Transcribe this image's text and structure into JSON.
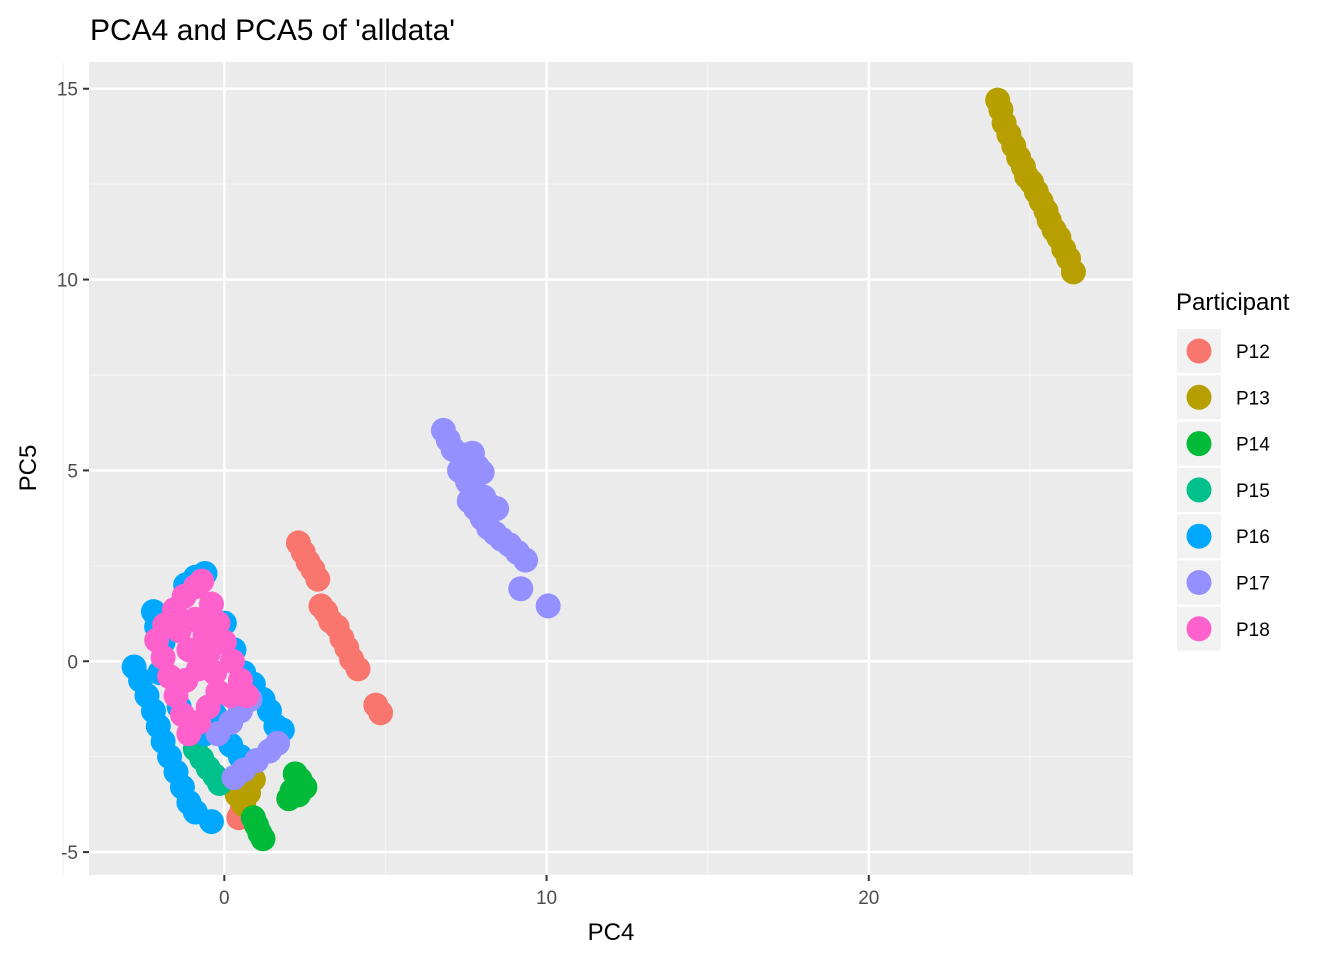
{
  "chart_data": {
    "type": "scatter",
    "title": "PCA4 and PCA5 of 'alldata'",
    "xlabel": "PC4",
    "ylabel": "PC5",
    "xlim": [
      -4.2,
      28.2
    ],
    "ylim": [
      -5.6,
      15.7
    ],
    "x_ticks": [
      {
        "value": 0,
        "label": "0"
      },
      {
        "value": 10,
        "label": "10"
      },
      {
        "value": 20,
        "label": "20"
      }
    ],
    "y_ticks": [
      {
        "value": -5,
        "label": "-5"
      },
      {
        "value": 0,
        "label": "0"
      },
      {
        "value": 5,
        "label": "5"
      },
      {
        "value": 10,
        "label": "10"
      },
      {
        "value": 15,
        "label": "15"
      }
    ],
    "x_minor": [
      -5,
      5,
      15,
      25
    ],
    "y_minor": [
      -2.5,
      2.5,
      7.5,
      12.5
    ],
    "grid": true,
    "legend": {
      "title": "Participant",
      "position": "right"
    },
    "series": [
      {
        "name": "P12",
        "color": "#F8766D",
        "points": [
          [
            2.3,
            3.1
          ],
          [
            2.45,
            2.85
          ],
          [
            2.6,
            2.6
          ],
          [
            2.75,
            2.4
          ],
          [
            2.9,
            2.15
          ],
          [
            3.0,
            1.45
          ],
          [
            3.15,
            1.3
          ],
          [
            3.3,
            1.05
          ],
          [
            3.5,
            0.9
          ],
          [
            3.65,
            0.6
          ],
          [
            3.8,
            0.35
          ],
          [
            3.95,
            0.05
          ],
          [
            4.15,
            -0.2
          ],
          [
            4.7,
            -1.15
          ],
          [
            4.85,
            -1.35
          ],
          [
            0.45,
            -4.1
          ],
          [
            0.55,
            -3.9
          ]
        ]
      },
      {
        "name": "P13",
        "color": "#B79F00",
        "points": [
          [
            24.0,
            14.7
          ],
          [
            24.1,
            14.45
          ],
          [
            24.2,
            14.1
          ],
          [
            24.35,
            13.8
          ],
          [
            24.5,
            13.5
          ],
          [
            24.65,
            13.2
          ],
          [
            24.8,
            12.95
          ],
          [
            24.9,
            12.7
          ],
          [
            25.05,
            12.55
          ],
          [
            25.2,
            12.3
          ],
          [
            25.35,
            12.05
          ],
          [
            25.5,
            11.8
          ],
          [
            25.6,
            11.55
          ],
          [
            25.75,
            11.3
          ],
          [
            25.9,
            11.1
          ],
          [
            26.05,
            10.8
          ],
          [
            26.2,
            10.55
          ],
          [
            26.35,
            10.2
          ],
          [
            0.4,
            -3.5
          ],
          [
            0.6,
            -3.75
          ],
          [
            0.75,
            -3.45
          ],
          [
            0.9,
            -3.1
          ],
          [
            0.5,
            -3.2
          ]
        ]
      },
      {
        "name": "P14",
        "color": "#00BA38",
        "points": [
          [
            2.2,
            -2.95
          ],
          [
            2.35,
            -3.1
          ],
          [
            2.5,
            -3.3
          ],
          [
            2.1,
            -3.4
          ],
          [
            2.0,
            -3.6
          ],
          [
            2.3,
            -3.5
          ],
          [
            0.9,
            -4.1
          ],
          [
            1.0,
            -4.3
          ],
          [
            1.1,
            -4.5
          ],
          [
            1.2,
            -4.65
          ]
        ]
      },
      {
        "name": "P15",
        "color": "#00C08B",
        "points": [
          [
            -0.9,
            -2.3
          ],
          [
            -0.7,
            -2.55
          ],
          [
            -0.5,
            -2.8
          ],
          [
            -0.3,
            -3.0
          ],
          [
            -0.15,
            -3.2
          ]
        ]
      },
      {
        "name": "P16",
        "color": "#00A9FF",
        "points": [
          [
            -2.8,
            -0.15
          ],
          [
            -2.6,
            -0.5
          ],
          [
            -2.4,
            -0.9
          ],
          [
            -2.2,
            -1.3
          ],
          [
            -2.05,
            -1.7
          ],
          [
            -1.9,
            -2.1
          ],
          [
            -1.7,
            -2.5
          ],
          [
            -1.5,
            -2.9
          ],
          [
            -1.3,
            -3.3
          ],
          [
            -1.1,
            -3.7
          ],
          [
            -0.9,
            -3.95
          ],
          [
            -0.4,
            -4.2
          ],
          [
            -2.2,
            1.3
          ],
          [
            -2.1,
            0.9
          ],
          [
            -1.9,
            0.5
          ],
          [
            -1.2,
            2.0
          ],
          [
            -0.9,
            2.2
          ],
          [
            -0.6,
            2.3
          ],
          [
            0.0,
            1.0
          ],
          [
            0.3,
            0.3
          ],
          [
            0.6,
            -0.3
          ],
          [
            0.9,
            -0.6
          ],
          [
            1.2,
            -1.0
          ],
          [
            1.4,
            -1.3
          ],
          [
            1.6,
            -1.7
          ],
          [
            1.8,
            -1.8
          ],
          [
            0.2,
            -2.2
          ],
          [
            0.5,
            -2.5
          ],
          [
            -0.3,
            -1.4
          ],
          [
            -0.6,
            -1.9
          ],
          [
            -1.4,
            -1.2
          ],
          [
            -2.0,
            -0.3
          ]
        ]
      },
      {
        "name": "P17",
        "color": "#9590FF",
        "points": [
          [
            6.8,
            6.05
          ],
          [
            6.95,
            5.8
          ],
          [
            7.1,
            5.55
          ],
          [
            7.45,
            5.4
          ],
          [
            7.7,
            5.45
          ],
          [
            7.85,
            5.1
          ],
          [
            8.0,
            4.95
          ],
          [
            7.3,
            5.0
          ],
          [
            7.55,
            4.7
          ],
          [
            7.75,
            4.5
          ],
          [
            7.6,
            4.2
          ],
          [
            7.8,
            4.0
          ],
          [
            8.05,
            4.3
          ],
          [
            8.2,
            4.1
          ],
          [
            8.45,
            4.0
          ],
          [
            8.0,
            3.75
          ],
          [
            8.2,
            3.5
          ],
          [
            8.4,
            3.35
          ],
          [
            8.6,
            3.2
          ],
          [
            8.85,
            3.05
          ],
          [
            9.1,
            2.85
          ],
          [
            9.35,
            2.65
          ],
          [
            9.2,
            1.9
          ],
          [
            10.05,
            1.45
          ],
          [
            -0.2,
            -1.9
          ],
          [
            0.2,
            -1.6
          ],
          [
            0.5,
            -1.3
          ],
          [
            0.8,
            -1.0
          ],
          [
            0.3,
            -3.05
          ],
          [
            0.6,
            -2.85
          ],
          [
            1.0,
            -2.6
          ],
          [
            1.4,
            -2.35
          ],
          [
            1.65,
            -2.15
          ]
        ]
      },
      {
        "name": "P18",
        "color": "#FF61CC",
        "points": [
          [
            -2.1,
            0.55
          ],
          [
            -1.85,
            0.95
          ],
          [
            -1.55,
            1.35
          ],
          [
            -1.25,
            1.7
          ],
          [
            -0.9,
            1.95
          ],
          [
            -0.7,
            2.1
          ],
          [
            -1.9,
            0.1
          ],
          [
            -1.7,
            -0.4
          ],
          [
            -1.5,
            -0.9
          ],
          [
            -1.3,
            -1.4
          ],
          [
            -1.1,
            -1.9
          ],
          [
            -0.4,
            1.5
          ],
          [
            -0.2,
            1.0
          ],
          [
            0.0,
            0.5
          ],
          [
            0.25,
            0.0
          ],
          [
            0.5,
            -0.5
          ],
          [
            0.7,
            -0.9
          ],
          [
            -0.8,
            -1.6
          ],
          [
            -0.5,
            -1.2
          ],
          [
            -0.2,
            -0.8
          ],
          [
            -1.4,
            0.8
          ],
          [
            -1.1,
            0.3
          ],
          [
            -0.8,
            -0.2
          ],
          [
            -0.5,
            0.2
          ],
          [
            -0.9,
            1.1
          ],
          [
            -0.6,
            0.7
          ],
          [
            -1.6,
            1.1
          ],
          [
            -1.2,
            -0.5
          ],
          [
            -0.3,
            -0.3
          ],
          [
            0.2,
            -0.9
          ]
        ]
      }
    ]
  }
}
